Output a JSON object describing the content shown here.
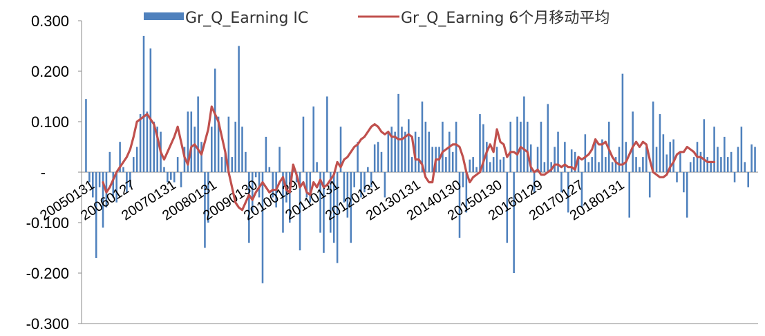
{
  "chart_data": {
    "type": "bar+line",
    "title": "",
    "xlabel": "",
    "ylabel": "",
    "ylim": [
      -0.3,
      0.3
    ],
    "yticks": [
      {
        "value": 0.3,
        "label": "0.300"
      },
      {
        "value": 0.2,
        "label": "0.200"
      },
      {
        "value": 0.1,
        "label": "0.100"
      },
      {
        "value": 0.0,
        "label": "-"
      },
      {
        "value": -0.1,
        "label": "-0.100"
      },
      {
        "value": -0.2,
        "label": "-0.200"
      },
      {
        "value": -0.3,
        "label": "-0.300"
      }
    ],
    "xticks": [
      {
        "index": 0,
        "label": "20050131"
      },
      {
        "index": 12,
        "label": "20060127"
      },
      {
        "index": 24,
        "label": "20070131"
      },
      {
        "index": 36,
        "label": "20080131"
      },
      {
        "index": 48,
        "label": "20090130"
      },
      {
        "index": 60,
        "label": "20100129"
      },
      {
        "index": 72,
        "label": "20110131"
      },
      {
        "index": 84,
        "label": "20120131"
      },
      {
        "index": 96,
        "label": "20130131"
      },
      {
        "index": 108,
        "label": "20140130"
      },
      {
        "index": 120,
        "label": "20150130"
      },
      {
        "index": 132,
        "label": "20160129"
      },
      {
        "index": 144,
        "label": "20170127"
      },
      {
        "index": 156,
        "label": "20180131"
      }
    ],
    "legend": {
      "placement": "top-center"
    },
    "grid": false,
    "series": [
      {
        "name": "Gr_Q_Earning IC",
        "type": "bar",
        "color": "#4F81BD",
        "values": [
          0.145,
          -0.02,
          -0.05,
          -0.17,
          -0.03,
          -0.11,
          -0.07,
          0.04,
          -0.05,
          -0.06,
          0.06,
          0.01,
          -0.04,
          -0.03,
          0.03,
          0.05,
          0.115,
          0.27,
          0.12,
          0.245,
          0.1,
          0.09,
          0.08,
          0.01,
          -0.02,
          -0.015,
          -0.02,
          0.03,
          -0.03,
          0.05,
          0.12,
          0.12,
          0.09,
          0.15,
          0.06,
          -0.15,
          -0.1,
          0.09,
          0.205,
          0.11,
          0.03,
          0.04,
          0.11,
          0.03,
          0.1,
          0.25,
          0.09,
          0.04,
          -0.14,
          -0.08,
          -0.01,
          -0.05,
          -0.22,
          0.07,
          0.01,
          -0.05,
          -0.07,
          0.05,
          -0.12,
          -0.06,
          -0.1,
          0.01,
          -0.02,
          -0.155,
          0.11,
          -0.05,
          -0.06,
          0.13,
          0.02,
          -0.12,
          -0.16,
          0.15,
          -0.12,
          -0.14,
          -0.18,
          0.09,
          -0.06,
          -0.09,
          -0.14,
          -0.03,
          0.06,
          -0.05,
          -0.04,
          0.01,
          -0.03,
          0.055,
          0.06,
          0.04,
          -0.05,
          0.08,
          0.09,
          0.08,
          0.155,
          0.09,
          0.08,
          0.105,
          0.03,
          0.08,
          0.07,
          0.14,
          0.1,
          0.08,
          0.05,
          0.05,
          0.05,
          0.1,
          0.03,
          0.08,
          0.04,
          0.1,
          -0.13,
          -0.03,
          -0.08,
          0.025,
          0.03,
          0.01,
          0.115,
          0.095,
          0.06,
          0.02,
          0.03,
          0.05,
          0.025,
          0.03,
          -0.14,
          0.1,
          -0.2,
          0.11,
          0.1,
          0.15,
          0.1,
          0.055,
          -0.04,
          0.05,
          0.1,
          0.02,
          0.135,
          0.02,
          0.05,
          0.08,
          -0.04,
          0.06,
          -0.08,
          0.045,
          0.04,
          0.03,
          -0.07,
          0.075,
          0.02,
          0.03,
          0.06,
          0.02,
          0.065,
          0.03,
          0.1,
          0.02,
          0.03,
          0.05,
          0.195,
          0.06,
          -0.09,
          0.12,
          0.03,
          0.01,
          0.03,
          0.05,
          -0.05,
          0.14,
          0.05,
          0.115,
          0.075,
          0.035,
          0.06,
          0.065,
          -0.02,
          0.04,
          -0.04,
          -0.09,
          0.02,
          0.03,
          0.06,
          0.04,
          0.105,
          0.03,
          0.02,
          0.09,
          0.05,
          0.03,
          0.07,
          0.03,
          0.04,
          -0.02,
          0.05,
          0.09,
          0.02,
          -0.03,
          0.055,
          0.05
        ]
      },
      {
        "name": "Gr_Q_Earning 6个月移动平均",
        "type": "line",
        "color": "#C0504D",
        "start_index": 5,
        "values": [
          -0.02,
          -0.04,
          -0.03,
          -0.015,
          0.0,
          0.01,
          0.02,
          0.03,
          0.045,
          0.07,
          0.1,
          0.105,
          0.11,
          0.115,
          0.105,
          0.095,
          0.07,
          0.04,
          0.025,
          0.04,
          0.055,
          0.07,
          0.09,
          0.06,
          0.03,
          0.015,
          0.05,
          0.055,
          0.045,
          0.035,
          0.06,
          0.085,
          0.13,
          0.115,
          0.1,
          0.07,
          0.04,
          0.0,
          -0.03,
          -0.06,
          -0.07,
          -0.075,
          -0.06,
          -0.045,
          -0.055,
          -0.04,
          -0.03,
          -0.02,
          -0.03,
          -0.04,
          -0.035,
          -0.035,
          -0.02,
          -0.01,
          -0.035,
          -0.04,
          0.015,
          -0.005,
          -0.03,
          -0.02,
          -0.04,
          -0.045,
          -0.02,
          -0.03,
          -0.015,
          -0.03,
          -0.025,
          -0.015,
          -0.005,
          0.02,
          0.01,
          0.025,
          0.03,
          0.04,
          0.05,
          0.055,
          0.065,
          0.07,
          0.08,
          0.09,
          0.095,
          0.09,
          0.08,
          0.075,
          0.08,
          0.07,
          0.07,
          0.065,
          0.065,
          0.07,
          0.075,
          0.07,
          0.025,
          0.025,
          0.015,
          -0.01,
          -0.02,
          -0.02,
          0.025,
          0.025,
          0.04,
          0.045,
          0.05,
          0.055,
          0.055,
          0.05,
          0.03,
          0.0,
          -0.02,
          -0.01,
          -0.005,
          0.0,
          0.02,
          0.04,
          0.055,
          0.04,
          0.085,
          0.06,
          0.055,
          0.03,
          0.04,
          0.04,
          0.035,
          0.05,
          0.045,
          0.04,
          0.01,
          0.0,
          0.005,
          -0.005,
          -0.005,
          0.0,
          0.005,
          0.015,
          0.015,
          0.01,
          0.015,
          0.01,
          0.01,
          0.005,
          0.03,
          0.025,
          0.03,
          0.035,
          0.045,
          0.065,
          0.055,
          0.055,
          0.06,
          0.045,
          0.03,
          0.02,
          0.015,
          0.015,
          0.02,
          0.035,
          0.05,
          0.06,
          0.05,
          0.06,
          0.055,
          0.025,
          0.0,
          -0.005,
          -0.01,
          -0.01,
          -0.005,
          0.01,
          0.02,
          0.035,
          0.04,
          0.04,
          0.05,
          0.045,
          0.04,
          0.03,
          0.03,
          0.025,
          0.02,
          0.02,
          0.02
        ]
      }
    ]
  }
}
